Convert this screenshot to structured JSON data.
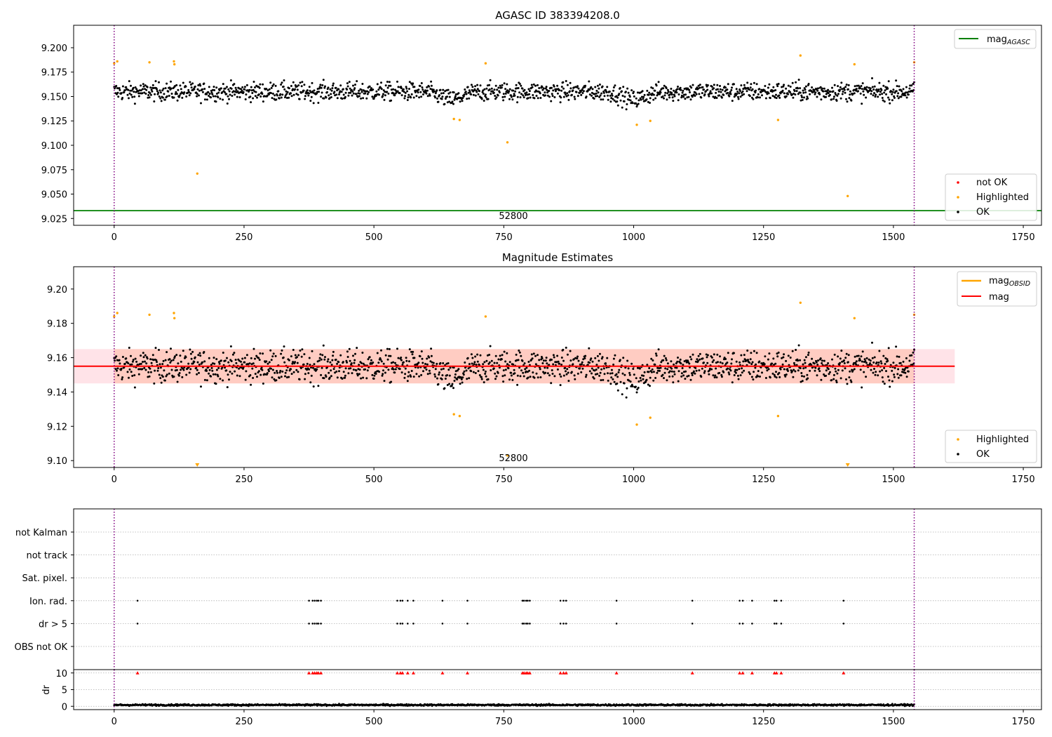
{
  "figure": {
    "colors": {
      "ok": "#000000",
      "highlighted": "#ffa500",
      "not_ok": "#ff0000",
      "mag_agasc": "#008000",
      "mag_obsid": "#ffa500",
      "mag": "#ff0000",
      "band_fill": "#ffc0cb",
      "band_fill_inner": "#ffa07a",
      "boundary": "#800080",
      "grid": "#b0b0b0"
    }
  },
  "chart_data": [
    {
      "type": "scatter",
      "title": "AGASC ID 383394208.0",
      "xlim": [
        -78,
        1785
      ],
      "ylim": [
        9.018,
        9.223
      ],
      "xticks": [
        0,
        250,
        500,
        750,
        1000,
        1250,
        1500,
        1750
      ],
      "yticks": [
        9.025,
        9.05,
        9.075,
        9.1,
        9.125,
        9.15,
        9.175,
        9.2
      ],
      "ytick_labels": [
        "9.025",
        "9.050",
        "9.075",
        "9.100",
        "9.125",
        "9.150",
        "9.175",
        "9.200"
      ],
      "vlines": [
        0,
        1540
      ],
      "hline": {
        "name": "mag_AGASC",
        "y": 9.033
      },
      "annotation": {
        "text": "52800",
        "x": 770
      },
      "ok_band": {
        "center": 9.155,
        "amplitude": 0.012,
        "x_range": [
          0,
          1540
        ]
      },
      "dips": [
        [
          650,
          0.008
        ],
        [
          1000,
          0.008
        ]
      ],
      "highlighted": [
        [
          0,
          9.184
        ],
        [
          6,
          9.186
        ],
        [
          68,
          9.185
        ],
        [
          115,
          9.186
        ],
        [
          116,
          9.183
        ],
        [
          160,
          9.071
        ],
        [
          654,
          9.127
        ],
        [
          665,
          9.126
        ],
        [
          715,
          9.184
        ],
        [
          757,
          9.103
        ],
        [
          1006,
          9.121
        ],
        [
          1032,
          9.125
        ],
        [
          1278,
          9.126
        ],
        [
          1321,
          9.192
        ],
        [
          1412,
          9.048
        ],
        [
          1425,
          9.183
        ],
        [
          1540,
          9.185
        ]
      ],
      "legends": [
        {
          "position": "top-right",
          "entries": [
            {
              "label": "mag",
              "sub": "AGASC",
              "kind": "line",
              "color_key": "mag_agasc"
            }
          ]
        },
        {
          "position": "lower-right",
          "entries": [
            {
              "label": "not OK",
              "kind": "dot",
              "color_key": "not_ok"
            },
            {
              "label": "Highlighted",
              "kind": "dot",
              "color_key": "highlighted"
            },
            {
              "label": "OK",
              "kind": "dot",
              "color_key": "ok"
            }
          ]
        }
      ]
    },
    {
      "type": "scatter",
      "title": "Magnitude Estimates",
      "xlim": [
        -78,
        1785
      ],
      "ylim": [
        9.096,
        9.213
      ],
      "xticks": [
        0,
        250,
        500,
        750,
        1000,
        1250,
        1500,
        1750
      ],
      "yticks": [
        9.1,
        9.12,
        9.14,
        9.16,
        9.18,
        9.2
      ],
      "ytick_labels": [
        "9.10",
        "9.12",
        "9.14",
        "9.16",
        "9.18",
        "9.20"
      ],
      "vlines": [
        0,
        1540
      ],
      "mag_line": {
        "y": 9.155,
        "x_range": [
          -78,
          1618
        ]
      },
      "band": {
        "y": [
          9.145,
          9.165
        ],
        "x_range": [
          -78,
          1618
        ]
      },
      "obsid_band": {
        "y": [
          9.145,
          9.165
        ],
        "x_range": [
          0,
          1540
        ]
      },
      "annotation": {
        "text": "52800",
        "x": 770
      },
      "clipped_markers": [
        160,
        1412
      ],
      "legends": [
        {
          "position": "top-right",
          "entries": [
            {
              "label": "mag",
              "sub": "OBSID",
              "kind": "line",
              "color_key": "mag_obsid"
            },
            {
              "label": "mag",
              "sub": "",
              "kind": "line",
              "color_key": "mag"
            }
          ]
        },
        {
          "position": "lower-right",
          "entries": [
            {
              "label": "Highlighted",
              "kind": "dot",
              "color_key": "highlighted"
            },
            {
              "label": "OK",
              "kind": "dot",
              "color_key": "ok"
            }
          ]
        }
      ]
    },
    {
      "type": "scatter",
      "xlim": [
        -78,
        1785
      ],
      "xticks": [
        0,
        250,
        500,
        750,
        1000,
        1250,
        1500,
        1750
      ],
      "vlines": [
        0,
        1540
      ],
      "flag_rows": [
        "not Kalman",
        "not track",
        "Sat. pixel.",
        "Ion. rad.",
        "dr > 5",
        "OBS not OK"
      ],
      "flagged_x": [
        45,
        375,
        382,
        386,
        390,
        393,
        398,
        545,
        551,
        555,
        565,
        576,
        632,
        680,
        786,
        789,
        793,
        796,
        800,
        859,
        865,
        870,
        967,
        1113,
        1204,
        1210,
        1228,
        1271,
        1275,
        1284,
        1404
      ],
      "dr_panel": {
        "ylabel": "dr",
        "ylim": [
          -1,
          11
        ],
        "yticks": [
          0,
          5,
          10
        ],
        "mean": 0.4,
        "clip_value": 10
      }
    }
  ]
}
